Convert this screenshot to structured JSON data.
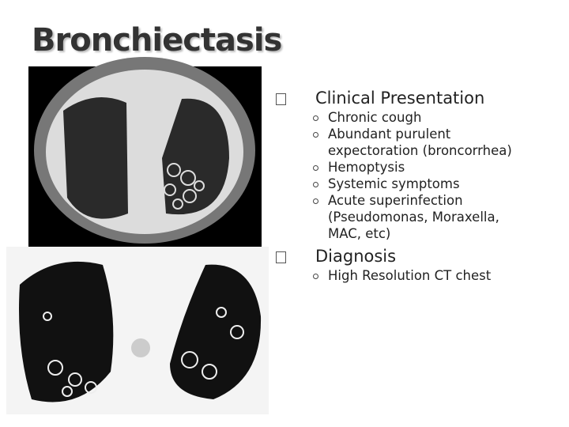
{
  "title": "Bronchiectasis",
  "sections": [
    {
      "heading": "Clinical Presentation",
      "items": [
        "Chronic cough",
        "Abundant purulent expectoration (broncorrhea)",
        "Hemoptysis",
        "Systemic symptoms",
        "Acute superinfection (Pseudomonas, Moraxella, MAC, etc)"
      ]
    },
    {
      "heading": "Diagnosis",
      "items": [
        "High Resolution CT chest"
      ]
    }
  ]
}
